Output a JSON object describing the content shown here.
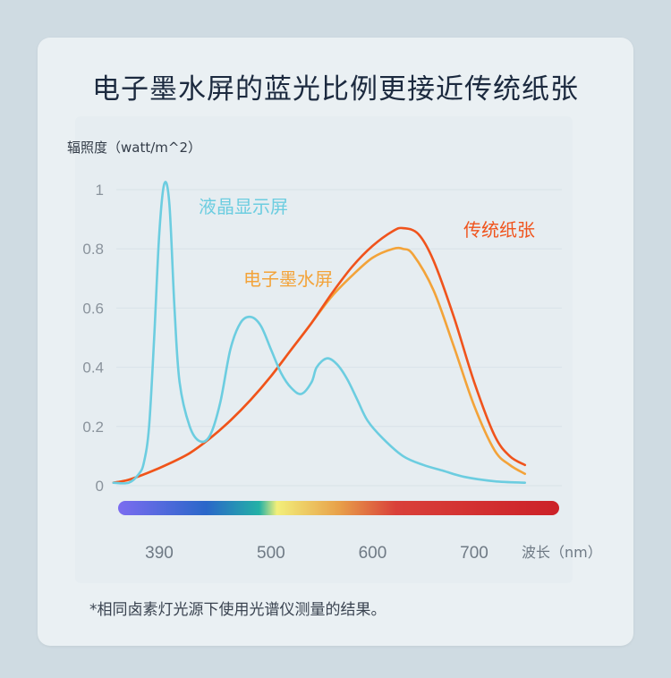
{
  "title": "电子墨水屏的蓝光比例更接近传统纸张",
  "footnote": "*相同卤素灯光源下使用光谱仪测量的结果。",
  "colors": {
    "background": "#cfdbe2",
    "card": "#eaf0f3",
    "lcd": "#6ccde0",
    "eink": "#f3a339",
    "paper": "#f0531c",
    "spectrum": [
      "#7b6cf0",
      "#2a67c9",
      "#23b1a6",
      "#f2ef7a",
      "#e8a14a",
      "#d9403a",
      "#cc2128"
    ]
  },
  "chart_data": {
    "type": "line",
    "ylabel": "辐照度（watt/m^2）",
    "xlabel": "波长（nm）",
    "x_ticks": [
      {
        "label": "390",
        "value": 390
      },
      {
        "label": "500",
        "value": 500
      },
      {
        "label": "600",
        "value": 600
      },
      {
        "label": "700",
        "value": 700
      }
    ],
    "y_ticks": [
      {
        "label": "0",
        "value": 0
      },
      {
        "label": "0.2",
        "value": 0.2
      },
      {
        "label": "0.4",
        "value": 0.4
      },
      {
        "label": "0.6",
        "value": 0.6
      },
      {
        "label": "0.8",
        "value": 0.8
      },
      {
        "label": "1",
        "value": 1
      }
    ],
    "xlim": [
      340,
      780
    ],
    "ylim": [
      0,
      1
    ],
    "grid": true,
    "series": [
      {
        "name": "液晶显示屏",
        "color": "#6ccde0",
        "points": [
          [
            345,
            0.01
          ],
          [
            360,
            0.01
          ],
          [
            370,
            0.04
          ],
          [
            375,
            0.08
          ],
          [
            380,
            0.2
          ],
          [
            385,
            0.5
          ],
          [
            390,
            0.85
          ],
          [
            395,
            1.02
          ],
          [
            400,
            0.95
          ],
          [
            405,
            0.6
          ],
          [
            410,
            0.35
          ],
          [
            420,
            0.2
          ],
          [
            430,
            0.15
          ],
          [
            440,
            0.17
          ],
          [
            450,
            0.28
          ],
          [
            460,
            0.46
          ],
          [
            470,
            0.55
          ],
          [
            480,
            0.57
          ],
          [
            490,
            0.54
          ],
          [
            500,
            0.46
          ],
          [
            510,
            0.38
          ],
          [
            520,
            0.33
          ],
          [
            530,
            0.31
          ],
          [
            540,
            0.35
          ],
          [
            545,
            0.4
          ],
          [
            555,
            0.43
          ],
          [
            565,
            0.41
          ],
          [
            575,
            0.36
          ],
          [
            585,
            0.29
          ],
          [
            595,
            0.22
          ],
          [
            610,
            0.16
          ],
          [
            630,
            0.1
          ],
          [
            650,
            0.07
          ],
          [
            670,
            0.05
          ],
          [
            690,
            0.03
          ],
          [
            720,
            0.015
          ],
          [
            750,
            0.01
          ]
        ]
      },
      {
        "name": "电子墨水屏",
        "color": "#f3a339",
        "points": [
          [
            345,
            0.01
          ],
          [
            360,
            0.02
          ],
          [
            380,
            0.045
          ],
          [
            400,
            0.075
          ],
          [
            420,
            0.11
          ],
          [
            440,
            0.16
          ],
          [
            460,
            0.22
          ],
          [
            480,
            0.29
          ],
          [
            500,
            0.37
          ],
          [
            520,
            0.46
          ],
          [
            540,
            0.55
          ],
          [
            560,
            0.64
          ],
          [
            580,
            0.71
          ],
          [
            600,
            0.77
          ],
          [
            620,
            0.8
          ],
          [
            630,
            0.8
          ],
          [
            640,
            0.78
          ],
          [
            660,
            0.66
          ],
          [
            680,
            0.47
          ],
          [
            700,
            0.27
          ],
          [
            720,
            0.12
          ],
          [
            735,
            0.07
          ],
          [
            750,
            0.04
          ]
        ]
      },
      {
        "name": "传统纸张",
        "color": "#f0531c",
        "points": [
          [
            345,
            0.01
          ],
          [
            360,
            0.02
          ],
          [
            380,
            0.045
          ],
          [
            400,
            0.075
          ],
          [
            420,
            0.11
          ],
          [
            440,
            0.16
          ],
          [
            460,
            0.22
          ],
          [
            480,
            0.29
          ],
          [
            500,
            0.37
          ],
          [
            520,
            0.46
          ],
          [
            540,
            0.55
          ],
          [
            560,
            0.65
          ],
          [
            580,
            0.74
          ],
          [
            600,
            0.81
          ],
          [
            620,
            0.86
          ],
          [
            630,
            0.87
          ],
          [
            645,
            0.85
          ],
          [
            660,
            0.76
          ],
          [
            680,
            0.57
          ],
          [
            700,
            0.35
          ],
          [
            720,
            0.17
          ],
          [
            735,
            0.1
          ],
          [
            750,
            0.07
          ]
        ]
      }
    ]
  }
}
